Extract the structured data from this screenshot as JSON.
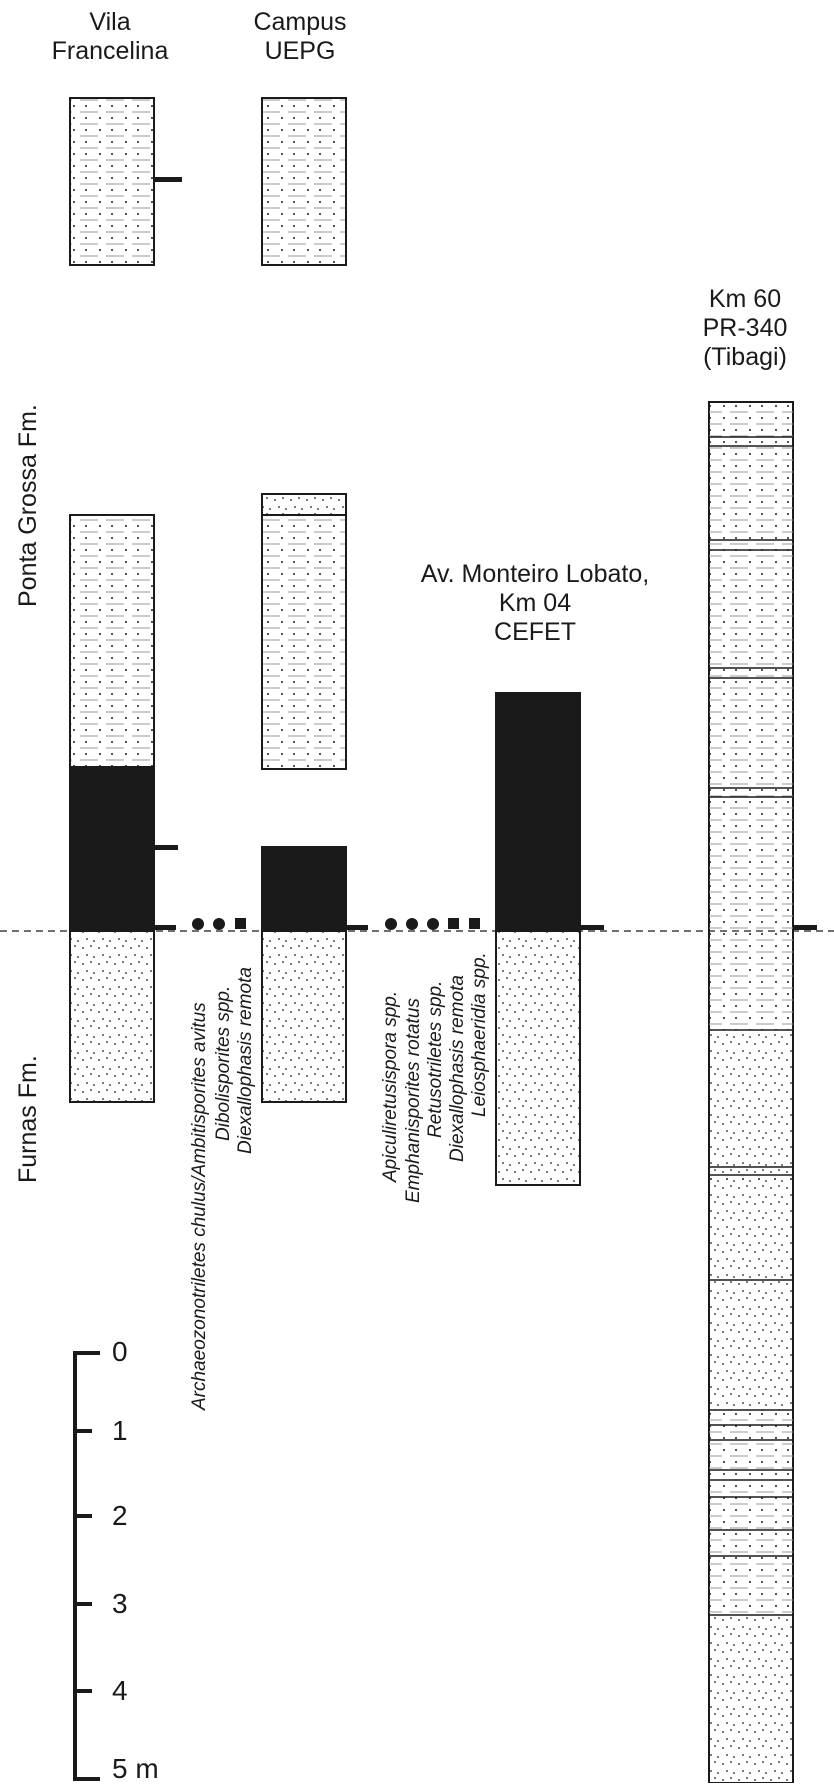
{
  "formations": {
    "upper": "Ponta Grossa Fm.",
    "lower": "Furnas Fm."
  },
  "sections": [
    {
      "id": "vila",
      "title": "Vila\nFrancelina"
    },
    {
      "id": "campus",
      "title": "Campus\nUEPG"
    },
    {
      "id": "cefet",
      "title": "Av. Monteiro Lobato,\nKm 04\nCEFET"
    },
    {
      "id": "tibagi",
      "title": "Km 60\nPR-340\n(Tibagi)"
    }
  ],
  "taxa_group_1": [
    "Archaeozonotriletes chulus/Ambitisporites avitus",
    "Dibolisporites spp.",
    "Diexallophasis remota"
  ],
  "taxa_group_2": [
    "Apiculiretusispora spp.",
    "Emphanisporites rotatus",
    "Retusotriletes spp.",
    "Diexallophasis remota",
    "Leiosphaeridia spp."
  ],
  "scale": {
    "labels": [
      "0",
      "1",
      "2",
      "3",
      "4",
      "5 m"
    ]
  },
  "colors": {
    "ink": "#1a1a1a",
    "background": "#ffffff"
  }
}
